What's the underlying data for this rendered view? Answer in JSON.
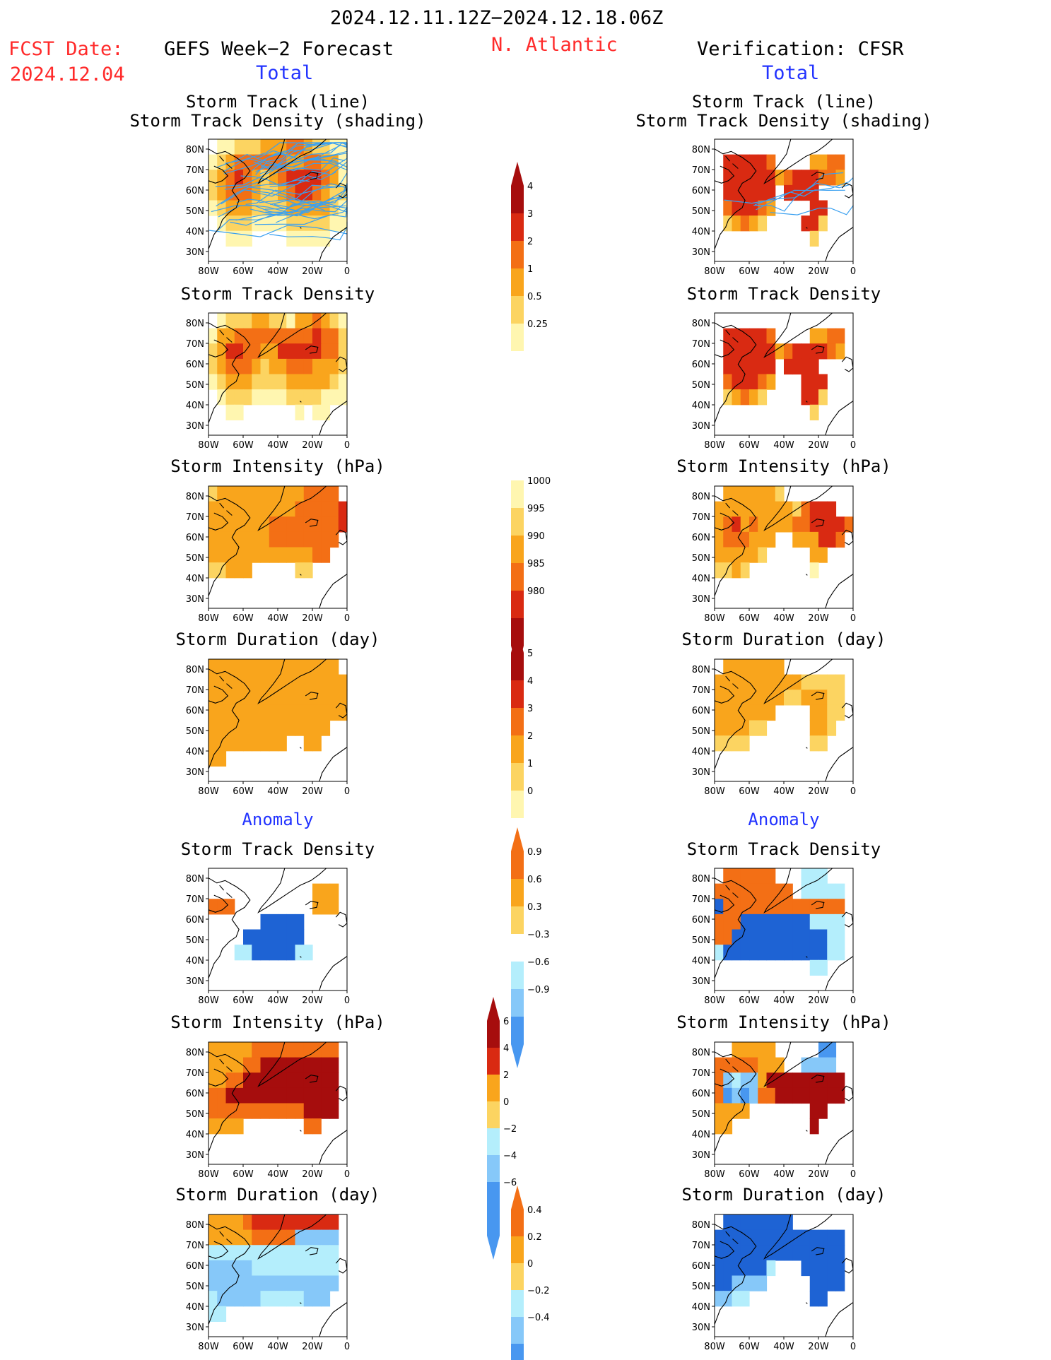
{
  "header": {
    "period": "2024.12.11.12Z−2024.12.18.06Z",
    "fcst_label": "FCST Date:",
    "fcst_date": "2024.12.04",
    "left_title": "GEFS Week−2 Forecast",
    "region": "N. Atlantic",
    "right_title": "Verification: CFSR",
    "total_label": "Total",
    "anomaly_label": "Anomaly"
  },
  "panel_titles": {
    "track_line": "Storm Track (line)",
    "track_shading": "Storm Track Density (shading)",
    "density": "Storm Track Density",
    "intensity": "Storm Intensity (hPa)",
    "duration": "Storm Duration (day)"
  },
  "axes": {
    "lat_ticks": [
      "80N",
      "70N",
      "60N",
      "50N",
      "40N",
      "30N"
    ],
    "lon_ticks": [
      "80W",
      "60W",
      "40W",
      "20W",
      "0"
    ]
  },
  "colors": {
    "yellow_light": "#fff6b0",
    "yellow": "#fcd461",
    "orange_light": "#f9a51c",
    "orange": "#f36f15",
    "red": "#d92a12",
    "dark_red": "#a60d0d",
    "blue_light": "#b4eefc",
    "blue_mid": "#86c8f9",
    "blue": "#4897f0",
    "blue_dark": "#1e63d4",
    "track_line": "#3aa0f0",
    "coast": "#000000"
  },
  "chart_data": [
    {
      "type": "heatmap",
      "title": "Storm Track Density (shading)",
      "colorbar": "cb_density",
      "rows": [
        "0112223334432211",
        "1234444443344331",
        "2345432345555431",
        "2344432234554322",
        "1233322223333321",
        "0122211112222211",
        "0011100001111100",
        "0000000000000000"
      ],
      "track_lines": true
    },
    {
      "type": "heatmap",
      "title": "Storm Track Density (shading)",
      "colorbar": "cb_density",
      "rows": [
        "0000000000000000",
        "0555554000033440",
        "0555555345554430",
        "0555555055550000",
        "0455543000055000",
        "0234320000552000",
        "0000000000020000",
        "0000000000000000"
      ],
      "track_lines": true
    },
    {
      "type": "heatmap",
      "title": "Storm Track Density",
      "colorbar": "cb_density",
      "rows": [
        "0122233221334321",
        "1334444444445442",
        "2355443355555442",
        "2344432334443332",
        "1233322223333321",
        "0122211112222111",
        "0011000000101100",
        "0000000000000000"
      ],
      "track_lines": false
    },
    {
      "type": "heatmap",
      "title": "Storm Track Density",
      "colorbar": "cb_density",
      "rows": [
        "0000000000000000",
        "0555554000033440",
        "0555555345555430",
        "0555555055550000",
        "0455543000555000",
        "0234320000552000",
        "0000000000020000",
        "0000000000000000"
      ],
      "track_lines": false
    },
    {
      "type": "heatmap",
      "title": "Storm Intensity (hPa)",
      "colorbar": "cb_intensity",
      "rows": [
        "2333333333344440",
        "3333333333444445",
        "3333333444444445",
        "3333333444444440",
        "3333333333334400",
        "2233300000220000",
        "0000000000000000",
        "0000000000000000"
      ],
      "track_lines": false
    },
    {
      "type": "heatmap",
      "title": "Storm Intensity (hPa)",
      "colorbar": "cb_intensity",
      "rows": [
        "0333333200000000",
        "3333333332455500",
        "3453433334455554",
        "3444333003335540",
        "3333320000033000",
        "2232000000010000",
        "0000000000000000",
        "0000000000000000"
      ],
      "track_lines": false
    },
    {
      "type": "heatmap",
      "title": "Storm Duration (day)",
      "colorbar": "cb_duration",
      "rows": [
        "3333333333333330",
        "3333333333333333",
        "3333333333333333",
        "3333333333333333",
        "3333333333333300",
        "3333333330033000",
        "3300000000000000",
        "0000000000000000"
      ],
      "track_lines": false
    },
    {
      "type": "heatmap",
      "title": "Storm Duration (day)",
      "colorbar": "cb_duration",
      "rows": [
        "0333333300000000",
        "3333333333222220",
        "3333333322333220",
        "3333333000033220",
        "3333220000033200",
        "2222000000022000",
        "0000000000000000",
        "0000000000000000"
      ],
      "track_lines": false
    },
    {
      "type": "heatmap",
      "title": "Storm Track Density",
      "colorbar": "cb_anom_density",
      "rows": [
        "0000000000000000",
        "0000000000003330",
        "4440000000002220",
        "0000006666600000",
        "0000666666600000",
        "0005566666550000",
        "0000000000000000",
        "0000000000000000"
      ],
      "track_lines": false
    },
    {
      "type": "heatmap",
      "title": "Storm Track Density",
      "colorbar": "cb_anom_density",
      "rows": [
        "0444444000555000",
        "4444444440555550",
        "6444444444444440",
        "4446666666655550",
        "4466666666666550",
        "5666666666666550",
        "0000000000055000",
        "0000000000000000"
      ],
      "track_lines": false
    },
    {
      "type": "heatmap",
      "title": "Storm Intensity (hPa)",
      "colorbar": "cb_anom_intensity",
      "rows": [
        "3333344444444440",
        "3333445555555550",
        "3344555555555550",
        "4455555555555550",
        "4444444444455550",
        "3333000000044000",
        "0000000000000000",
        "0000000000000000"
      ],
      "track_lines": false
    },
    {
      "type": "heatmap",
      "title": "Storm Intensity (hPa)",
      "colorbar": "cb_anom_intensity",
      "rows": [
        "0033333000008800",
        "4444433300777700",
        "4767735555555550",
        "4878744555555550",
        "3333000000055000",
        "3300000000050000",
        "0000000000000000",
        "0000000000000000"
      ],
      "track_lines": false
    },
    {
      "type": "heatmap",
      "title": "Storm Duration (day)",
      "colorbar": "cb_anom_duration",
      "rows": [
        "3333455555555550",
        "3333344444888880",
        "7777777777777770",
        "8888877777777770",
        "8888888888888880",
        "7888887777788800",
        "6600000000000000",
        "0000000000000000"
      ],
      "track_lines": false
    },
    {
      "type": "heatmap",
      "title": "Storm Duration (day)",
      "colorbar": "cb_anom_duration",
      "rows": [
        "0999999990000000",
        "9999999999999990",
        "9999999999999990",
        "9999997000999990",
        "9988880000099990",
        "8877000000099000",
        "0000000000000000",
        "0000000000000000"
      ],
      "track_lines": false
    }
  ],
  "colorbars": {
    "cb_density": {
      "labels": [
        "4",
        "3",
        "2",
        "1",
        "0.5",
        "0.25"
      ]
    },
    "cb_intensity": {
      "labels": [
        "1000",
        "995",
        "990",
        "985",
        "980"
      ]
    },
    "cb_duration": {
      "labels": [
        "5",
        "4",
        "3",
        "2",
        "1",
        "0"
      ]
    },
    "cb_anom_density": {
      "labels": [
        "0.9",
        "0.6",
        "0.3",
        "−0.3",
        "−0.6",
        "−0.9"
      ]
    },
    "cb_anom_intensity": {
      "labels": [
        "6",
        "4",
        "2",
        "0",
        "−2",
        "−4",
        "−6"
      ]
    },
    "cb_anom_duration": {
      "labels": [
        "0.4",
        "0.2",
        "0",
        "−0.2",
        "−0.4"
      ]
    }
  }
}
